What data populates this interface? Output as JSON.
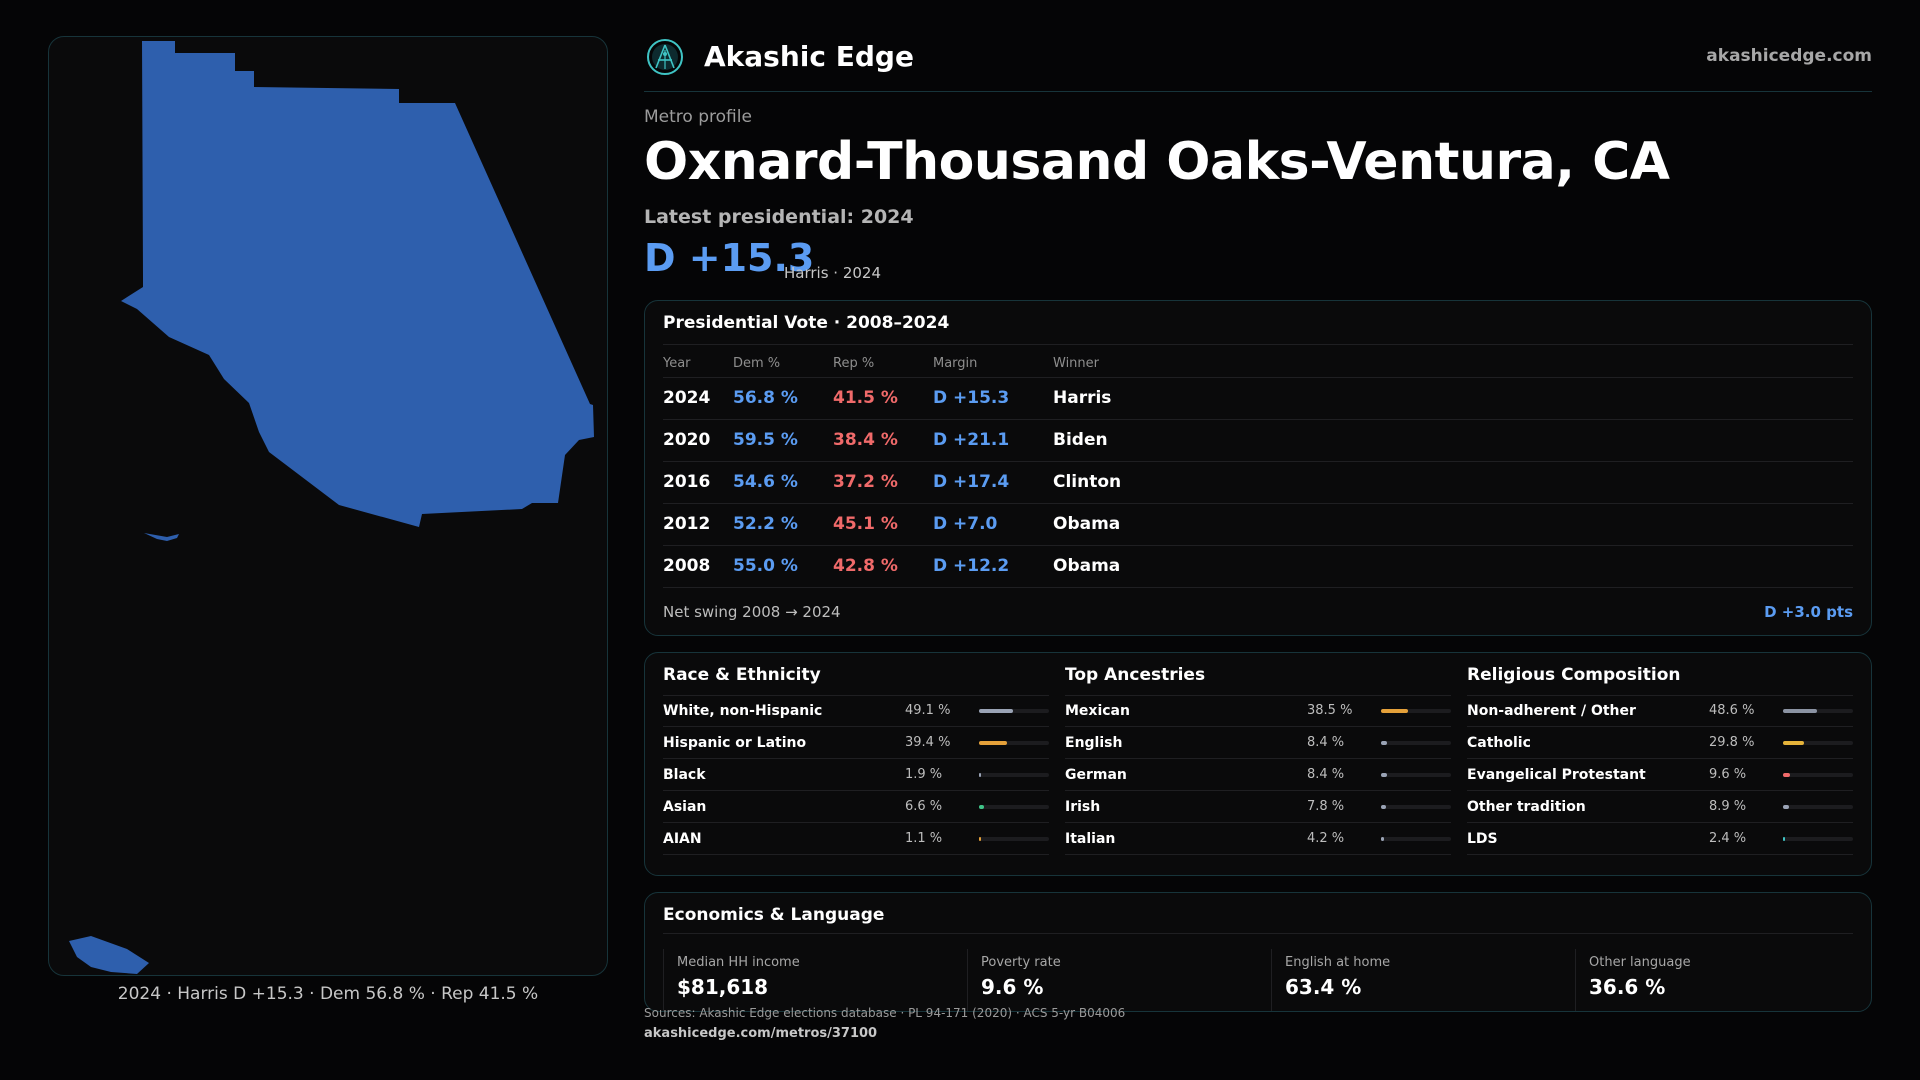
{
  "brand": {
    "name": "Akashic Edge",
    "site": "akashicedge.com"
  },
  "header": {
    "kicker": "Metro profile",
    "title": "Oxnard-Thousand Oaks-Ventura, CA",
    "latest_label": "Latest presidential: 2024",
    "margin": "D +15.3",
    "margin_sub": "Harris · 2024"
  },
  "map": {
    "caption": "2024 · Harris D +15.3 · Dem 56.8 % · Rep 41.5 %",
    "fill_color": "#2e5fad"
  },
  "vote": {
    "title": "Presidential Vote · 2008–2024",
    "columns": [
      "Year",
      "Dem %",
      "Rep %",
      "Margin",
      "Winner"
    ],
    "rows": [
      {
        "year": "2024",
        "dem": "56.8 %",
        "rep": "41.5 %",
        "margin": "D +15.3",
        "winner": "Harris"
      },
      {
        "year": "2020",
        "dem": "59.5 %",
        "rep": "38.4 %",
        "margin": "D +21.1",
        "winner": "Biden"
      },
      {
        "year": "2016",
        "dem": "54.6 %",
        "rep": "37.2 %",
        "margin": "D +17.4",
        "winner": "Clinton"
      },
      {
        "year": "2012",
        "dem": "52.2 %",
        "rep": "45.1 %",
        "margin": "D +7.0",
        "winner": "Obama"
      },
      {
        "year": "2008",
        "dem": "55.0 %",
        "rep": "42.8 %",
        "margin": "D +12.2",
        "winner": "Obama"
      }
    ],
    "swing_label": "Net swing 2008 → 2024",
    "swing_value": "D +3.0 pts",
    "colors": {
      "dem": "#5b9cf2",
      "rep": "#f06a6a"
    }
  },
  "demographics": {
    "race": {
      "title": "Race & Ethnicity",
      "items": [
        {
          "label": "White, non-Hispanic",
          "pct": "49.1 %",
          "value": 49.1,
          "color": "#9aa3b5"
        },
        {
          "label": "Hispanic or Latino",
          "pct": "39.4 %",
          "value": 39.4,
          "color": "#e5a13a"
        },
        {
          "label": "Black",
          "pct": "1.9 %",
          "value": 1.9,
          "color": "#9aa3b5"
        },
        {
          "label": "Asian",
          "pct": "6.6 %",
          "value": 6.6,
          "color": "#3fc488"
        },
        {
          "label": "AIAN",
          "pct": "1.1 %",
          "value": 1.1,
          "color": "#e5a13a"
        }
      ]
    },
    "ancestry": {
      "title": "Top Ancestries",
      "items": [
        {
          "label": "Mexican",
          "pct": "38.5 %",
          "value": 38.5,
          "color": "#e5a13a"
        },
        {
          "label": "English",
          "pct": "8.4 %",
          "value": 8.4,
          "color": "#9aa3b5"
        },
        {
          "label": "German",
          "pct": "8.4 %",
          "value": 8.4,
          "color": "#9aa3b5"
        },
        {
          "label": "Irish",
          "pct": "7.8 %",
          "value": 7.8,
          "color": "#9aa3b5"
        },
        {
          "label": "Italian",
          "pct": "4.2 %",
          "value": 4.2,
          "color": "#9aa3b5"
        }
      ]
    },
    "religion": {
      "title": "Religious Composition",
      "items": [
        {
          "label": "Non-adherent / Other",
          "pct": "48.6 %",
          "value": 48.6,
          "color": "#8b93a3"
        },
        {
          "label": "Catholic",
          "pct": "29.8 %",
          "value": 29.8,
          "color": "#e5b33a"
        },
        {
          "label": "Evangelical Protestant",
          "pct": "9.6 %",
          "value": 9.6,
          "color": "#f06a6a"
        },
        {
          "label": "Other tradition",
          "pct": "8.9 %",
          "value": 8.9,
          "color": "#9aa3b5"
        },
        {
          "label": "LDS",
          "pct": "2.4 %",
          "value": 2.4,
          "color": "#3fc4c4"
        }
      ]
    }
  },
  "economics": {
    "title": "Economics & Language",
    "stats": [
      {
        "label": "Median HH income",
        "value": "$81,618"
      },
      {
        "label": "Poverty rate",
        "value": "9.6 %"
      },
      {
        "label": "English at home",
        "value": "63.4 %"
      },
      {
        "label": "Other language",
        "value": "36.6 %"
      }
    ]
  },
  "footer": {
    "sources": "Sources: Akashic Edge elections database · PL 94-171 (2020) · ACS 5-yr B04006",
    "url": "akashicedge.com/metros/37100"
  }
}
